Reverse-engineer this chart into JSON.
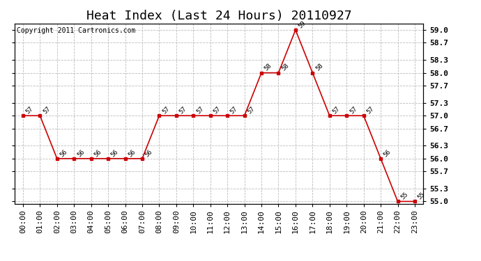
{
  "title": "Heat Index (Last 24 Hours) 20110927",
  "copyright": "Copyright 2011 Cartronics.com",
  "hours": [
    "00:00",
    "01:00",
    "02:00",
    "03:00",
    "04:00",
    "05:00",
    "06:00",
    "07:00",
    "08:00",
    "09:00",
    "10:00",
    "11:00",
    "12:00",
    "13:00",
    "14:00",
    "15:00",
    "16:00",
    "17:00",
    "18:00",
    "19:00",
    "20:00",
    "21:00",
    "22:00",
    "23:00"
  ],
  "values": [
    57,
    57,
    56,
    56,
    56,
    56,
    56,
    56,
    57,
    57,
    57,
    57,
    57,
    57,
    58,
    58,
    59,
    58,
    57,
    57,
    57,
    56,
    55,
    55
  ],
  "ylim_min": 55.0,
  "ylim_max": 59.0,
  "yticks": [
    55.0,
    55.3,
    55.7,
    56.0,
    56.3,
    56.7,
    57.0,
    57.3,
    57.7,
    58.0,
    58.3,
    58.7,
    59.0
  ],
  "line_color": "#cc0000",
  "marker": "s",
  "marker_size": 3,
  "bg_color": "#ffffff",
  "grid_color": "#bbbbbb",
  "title_fontsize": 13,
  "label_fontsize": 8,
  "annot_fontsize": 6.5,
  "copyright_fontsize": 7
}
